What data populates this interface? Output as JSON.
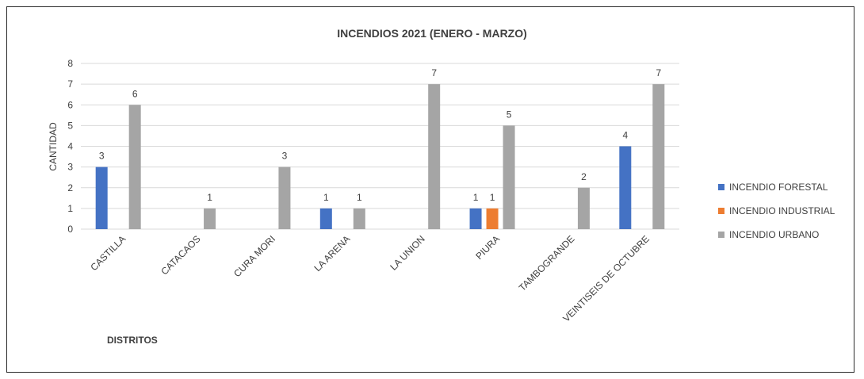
{
  "chart_data": {
    "type": "bar",
    "title": "INCENDIOS 2021  (ENERO - MARZO)",
    "ylabel": "CANTIDAD",
    "xlabel": "DISTRITOS",
    "ylim": [
      0,
      8
    ],
    "yticks": [
      0,
      1,
      2,
      3,
      4,
      5,
      6,
      7,
      8
    ],
    "grid": true,
    "legend": "right",
    "categories": [
      "CASTILLA",
      "CATACAOS",
      "CURA MORI",
      "LA ARENA",
      "LA UNION",
      "PIURA",
      "TAMBOGRANDE",
      "VEINTISEIS DE OCTUBRE"
    ],
    "series": [
      {
        "name": "INCENDIO FORESTAL",
        "color": "#4472C4",
        "values": [
          3,
          null,
          null,
          1,
          null,
          1,
          null,
          4
        ]
      },
      {
        "name": "INCENDIO INDUSTRIAL",
        "color": "#ED7D31",
        "values": [
          null,
          null,
          null,
          null,
          null,
          1,
          null,
          null
        ]
      },
      {
        "name": "INCENDIO URBANO",
        "color": "#A5A5A5",
        "values": [
          6,
          1,
          3,
          1,
          7,
          5,
          2,
          7
        ]
      }
    ]
  }
}
